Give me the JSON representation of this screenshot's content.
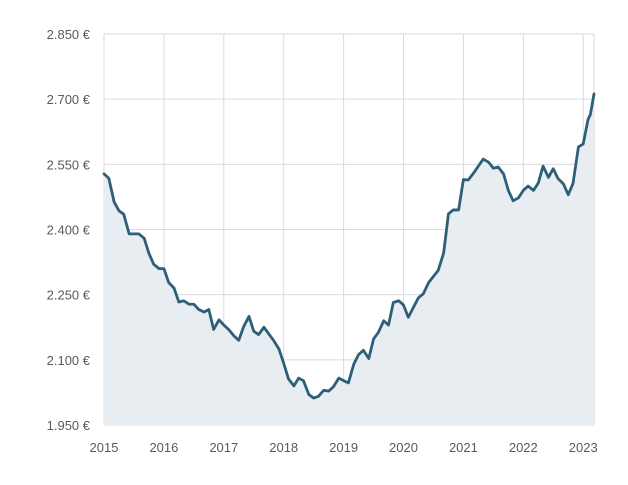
{
  "chart_data": {
    "type": "area",
    "title": "",
    "xlabel": "",
    "ylabel": "",
    "xlim": [
      2015,
      2023.18
    ],
    "ylim": [
      1950,
      2850
    ],
    "grid": true,
    "x_ticks": [
      {
        "value": 2015,
        "label": "2015"
      },
      {
        "value": 2016,
        "label": "2016"
      },
      {
        "value": 2017,
        "label": "2017"
      },
      {
        "value": 2018,
        "label": "2018"
      },
      {
        "value": 2019,
        "label": "2019"
      },
      {
        "value": 2020,
        "label": "2020"
      },
      {
        "value": 2021,
        "label": "2021"
      },
      {
        "value": 2022,
        "label": "2022"
      },
      {
        "value": 2023,
        "label": "2023"
      }
    ],
    "y_ticks": [
      {
        "value": 1950,
        "label": "1.950 €"
      },
      {
        "value": 2100,
        "label": "2.100 €"
      },
      {
        "value": 2250,
        "label": "2.250 €"
      },
      {
        "value": 2400,
        "label": "2.400 €"
      },
      {
        "value": 2550,
        "label": "2.550 €"
      },
      {
        "value": 2700,
        "label": "2.700 €"
      },
      {
        "value": 2850,
        "label": "2.850 €"
      }
    ],
    "colors": {
      "line": "#2e5f78",
      "fill": "#e8edf1",
      "grid": "#d8dadd",
      "axis_text": "#555b63"
    },
    "series": [
      {
        "points": [
          [
            2015.0,
            2528
          ],
          [
            2015.08,
            2518
          ],
          [
            2015.17,
            2463
          ],
          [
            2015.25,
            2443
          ],
          [
            2015.33,
            2435
          ],
          [
            2015.42,
            2390
          ],
          [
            2015.5,
            2390
          ],
          [
            2015.58,
            2390
          ],
          [
            2015.67,
            2380
          ],
          [
            2015.75,
            2345
          ],
          [
            2015.83,
            2320
          ],
          [
            2015.92,
            2310
          ],
          [
            2016.0,
            2310
          ],
          [
            2016.08,
            2278
          ],
          [
            2016.17,
            2265
          ],
          [
            2016.25,
            2233
          ],
          [
            2016.33,
            2236
          ],
          [
            2016.42,
            2228
          ],
          [
            2016.5,
            2228
          ],
          [
            2016.58,
            2216
          ],
          [
            2016.67,
            2210
          ],
          [
            2016.75,
            2216
          ],
          [
            2016.83,
            2170
          ],
          [
            2016.92,
            2192
          ],
          [
            2017.0,
            2180
          ],
          [
            2017.08,
            2170
          ],
          [
            2017.17,
            2155
          ],
          [
            2017.25,
            2145
          ],
          [
            2017.33,
            2176
          ],
          [
            2017.42,
            2200
          ],
          [
            2017.5,
            2166
          ],
          [
            2017.58,
            2158
          ],
          [
            2017.67,
            2175
          ],
          [
            2017.75,
            2160
          ],
          [
            2017.83,
            2145
          ],
          [
            2017.92,
            2125
          ],
          [
            2018.0,
            2092
          ],
          [
            2018.08,
            2056
          ],
          [
            2018.17,
            2040
          ],
          [
            2018.25,
            2058
          ],
          [
            2018.33,
            2052
          ],
          [
            2018.42,
            2020
          ],
          [
            2018.5,
            2012
          ],
          [
            2018.58,
            2016
          ],
          [
            2018.67,
            2030
          ],
          [
            2018.75,
            2028
          ],
          [
            2018.83,
            2038
          ],
          [
            2018.92,
            2058
          ],
          [
            2019.0,
            2052
          ],
          [
            2019.08,
            2047
          ],
          [
            2019.17,
            2090
          ],
          [
            2019.25,
            2112
          ],
          [
            2019.33,
            2122
          ],
          [
            2019.42,
            2103
          ],
          [
            2019.5,
            2148
          ],
          [
            2019.58,
            2163
          ],
          [
            2019.67,
            2190
          ],
          [
            2019.75,
            2180
          ],
          [
            2019.83,
            2232
          ],
          [
            2019.92,
            2236
          ],
          [
            2020.0,
            2226
          ],
          [
            2020.08,
            2198
          ],
          [
            2020.17,
            2222
          ],
          [
            2020.25,
            2243
          ],
          [
            2020.33,
            2252
          ],
          [
            2020.42,
            2278
          ],
          [
            2020.5,
            2292
          ],
          [
            2020.58,
            2306
          ],
          [
            2020.67,
            2346
          ],
          [
            2020.75,
            2436
          ],
          [
            2020.83,
            2445
          ],
          [
            2020.92,
            2445
          ],
          [
            2021.0,
            2515
          ],
          [
            2021.08,
            2514
          ],
          [
            2021.17,
            2530
          ],
          [
            2021.25,
            2546
          ],
          [
            2021.33,
            2562
          ],
          [
            2021.42,
            2555
          ],
          [
            2021.5,
            2541
          ],
          [
            2021.58,
            2544
          ],
          [
            2021.67,
            2528
          ],
          [
            2021.75,
            2490
          ],
          [
            2021.83,
            2466
          ],
          [
            2021.92,
            2473
          ],
          [
            2022.0,
            2490
          ],
          [
            2022.08,
            2500
          ],
          [
            2022.17,
            2490
          ],
          [
            2022.25,
            2507
          ],
          [
            2022.33,
            2546
          ],
          [
            2022.42,
            2520
          ],
          [
            2022.5,
            2540
          ],
          [
            2022.58,
            2517
          ],
          [
            2022.67,
            2505
          ],
          [
            2022.75,
            2480
          ],
          [
            2022.83,
            2506
          ],
          [
            2022.92,
            2590
          ],
          [
            2023.0,
            2597
          ],
          [
            2023.08,
            2653
          ],
          [
            2023.12,
            2665
          ],
          [
            2023.18,
            2712
          ]
        ]
      }
    ]
  }
}
